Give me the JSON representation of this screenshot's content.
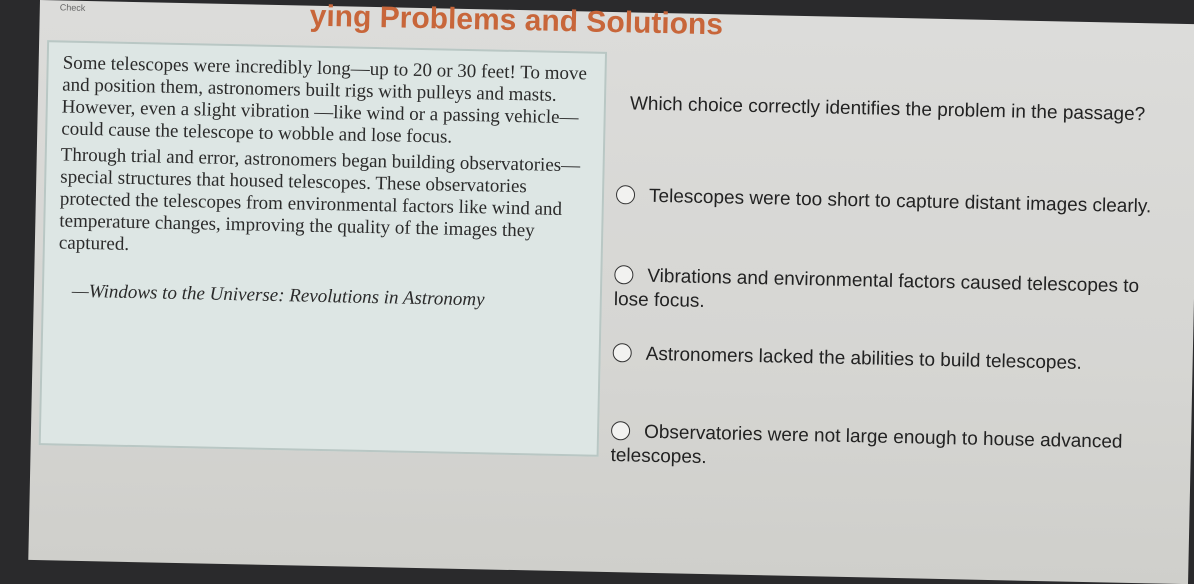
{
  "header": {
    "check_label": "Check",
    "title": "ying Problems and Solutions"
  },
  "passage": {
    "paragraphs": [
      "Some telescopes were incredibly long—up to 20 or 30 feet! To move and position them, astronomers built rigs with pulleys and masts. However, even a slight vibration —like wind or a passing vehicle—could cause the telescope to wobble and lose focus.",
      "Through trial and error, astronomers began building observatories—special structures that housed telescopes. These observatories protected the telescopes from environmental factors like wind and temperature changes, improving the quality of the images they captured."
    ],
    "citation": "—Windows to the Universe: Revolutions in Astronomy"
  },
  "question": {
    "text": "Which choice correctly identifies the problem in the passage?"
  },
  "options": [
    {
      "label": "Telescopes were too short to capture distant images clearly.",
      "selected": false
    },
    {
      "label": "Vibrations and environmental factors caused telescopes to lose focus.",
      "selected": false
    },
    {
      "label": "Astronomers lacked the abilities to build telescopes.",
      "selected": false
    },
    {
      "label": "Observatories were not large enough to house advanced telescopes.",
      "selected": false
    }
  ]
}
